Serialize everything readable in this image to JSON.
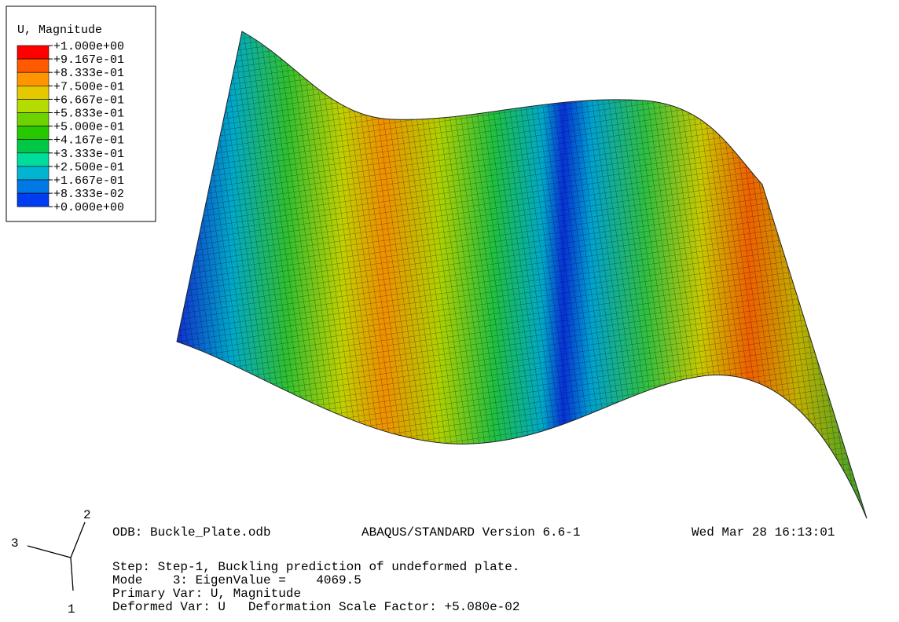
{
  "legend": {
    "title": "U, Magnitude",
    "labels": [
      "+1.000e+00",
      "+9.167e-01",
      "+8.333e-01",
      "+7.500e-01",
      "+6.667e-01",
      "+5.833e-01",
      "+5.000e-01",
      "+4.167e-01",
      "+3.333e-01",
      "+2.500e-01",
      "+1.667e-01",
      "+8.333e-02",
      "+0.000e+00"
    ],
    "colors": [
      "#ff0000",
      "#ff5a00",
      "#ff9600",
      "#e6c800",
      "#b4dc00",
      "#6ed200",
      "#28c800",
      "#00c846",
      "#00dc9b",
      "#00b4d2",
      "#0078e6",
      "#003cf0"
    ]
  },
  "triad": {
    "labels": [
      "2",
      "3",
      "1"
    ]
  },
  "info": {
    "odb": "ODB: Buckle_Plate.odb",
    "version": "ABAQUS/STANDARD Version 6.6-1",
    "date": "Wed Mar 28 16:13:01",
    "lines": [
      "Step: Step-1, Buckling prediction of undeformed plate.",
      "Mode    3: EigenValue =    4069.5",
      "Primary Var: U, Magnitude",
      "Deformed Var: U   Deformation Scale Factor: +5.080e-02"
    ]
  }
}
